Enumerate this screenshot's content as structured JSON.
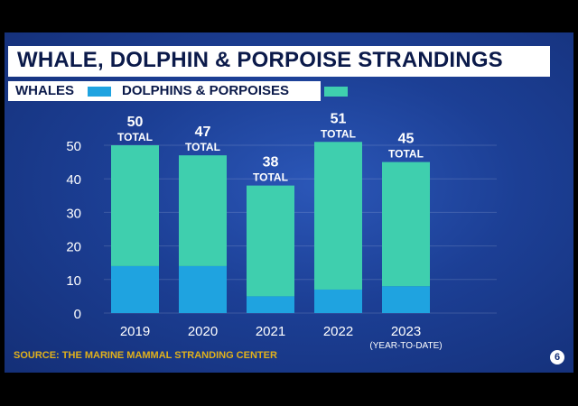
{
  "title": "WHALE, DOLPHIN & PORPOISE STRANDINGS",
  "legend": {
    "whales": "WHALES",
    "dolphins": "DOLPHINS & PORPOISES"
  },
  "colors": {
    "whales": "#1fa3e0",
    "dolphins": "#3fcfae",
    "text": "#ffffff",
    "source": "#e0b11c"
  },
  "source": "SOURCE: THE MARINE MAMMAL STRANDING CENTER",
  "logo_icon": "6abc-logo-icon",
  "chart_data": {
    "type": "bar",
    "stacked": true,
    "title": "WHALE, DOLPHIN & PORPOISE STRANDINGS",
    "categories": [
      "2019",
      "2020",
      "2021",
      "2022",
      "2023"
    ],
    "category_sublabels": [
      "",
      "",
      "",
      "",
      "(YEAR-TO-DATE)"
    ],
    "series": [
      {
        "name": "WHALES",
        "values": [
          14,
          14,
          5,
          7,
          8
        ]
      },
      {
        "name": "DOLPHINS & PORPOISES",
        "values": [
          36,
          33,
          33,
          44,
          37
        ]
      }
    ],
    "totals": [
      50,
      47,
      38,
      51,
      45
    ],
    "total_label": "TOTAL",
    "yticks": [
      0,
      10,
      20,
      30,
      40,
      50
    ],
    "ylim": [
      0,
      55
    ],
    "grid": true,
    "legend_position": "top-left"
  }
}
